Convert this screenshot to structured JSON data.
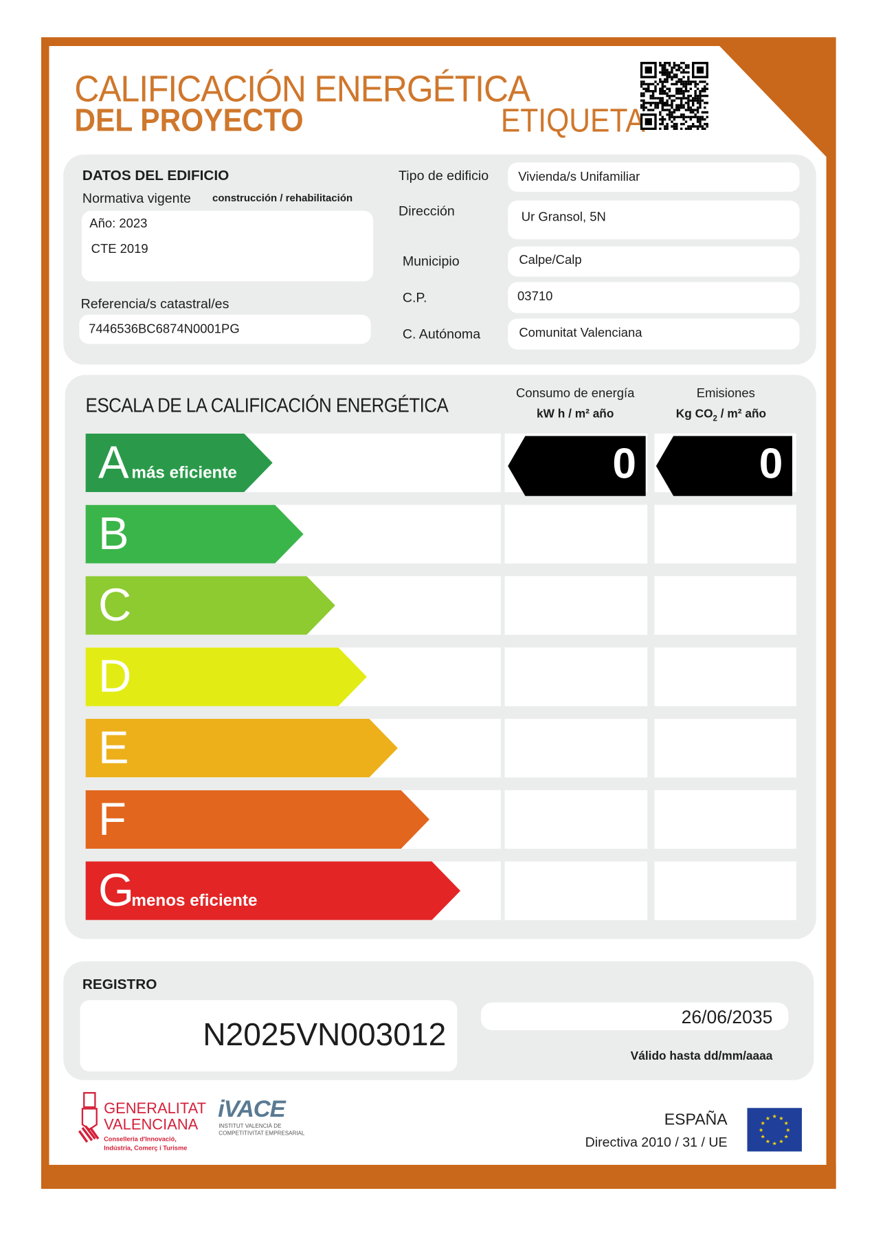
{
  "header": {
    "title_line1": "CALIFICACIÓN ENERGÉTICA",
    "title_line2": "DEL PROYECTO",
    "label": "ETIQUETA",
    "qr": "qr-code"
  },
  "building": {
    "section_title": "DATOS DEL EDIFICIO",
    "normativa_label": "Normativa vigente",
    "normativa_sub": "construcción / rehabilitación",
    "year": "Año: 2023",
    "norm": "CTE 2019",
    "cadastral_label": "Referencia/s catastral/es",
    "cadastral_value": "7446536BC6874N0001PG",
    "fields": [
      {
        "label": "Tipo de edificio",
        "value": "Vivienda/s Unifamiliar"
      },
      {
        "label": "Dirección",
        "value": "Ur Gransol, 5N"
      },
      {
        "label": "Municipio",
        "value": "Calpe/Calp"
      },
      {
        "label": "C.P.",
        "value": "03710"
      },
      {
        "label": "C. Autónoma",
        "value": "Comunitat Valenciana"
      }
    ]
  },
  "scale": {
    "title": "ESCALA DE LA CALIFICACIÓN ENERGÉTICA",
    "consumo_title": "Consumo de energía",
    "consumo_unit": "kW h / m² año",
    "emisiones_title": "Emisiones",
    "emisiones_unit_pre": "Kg CO",
    "emisiones_unit_sub": "2",
    "emisiones_unit_post": " / m² año",
    "classes": [
      {
        "letter": "A",
        "label": "más eficiente",
        "color": "#2a9a4a"
      },
      {
        "letter": "B",
        "label": "",
        "color": "#3ab54a"
      },
      {
        "letter": "C",
        "label": "",
        "color": "#8dcb31"
      },
      {
        "letter": "D",
        "label": "",
        "color": "#e2ec14"
      },
      {
        "letter": "E",
        "label": "",
        "color": "#edb01b"
      },
      {
        "letter": "F",
        "label": "",
        "color": "#e2661e"
      },
      {
        "letter": "G",
        "label": "menos eficiente",
        "color": "#e42526"
      }
    ],
    "rating_class": "A",
    "consumo_value": "0",
    "emisiones_value": "0"
  },
  "registro": {
    "title": "REGISTRO",
    "number": "N2025VN003012",
    "date": "26/06/2035",
    "valid_label": "Válido hasta dd/mm/aaaa"
  },
  "footer": {
    "gva_line1": "GENERALITAT",
    "gva_line2": "VALENCIANA",
    "gva_sub1": "Conselleria d'Innovació,",
    "gva_sub2": "Indústria, Comerç i Turisme",
    "ivace": "iVACE",
    "ivace_sub1": "INSTITUT VALENCIÀ DE",
    "ivace_sub2": "COMPETITIVITAT EMPRESARIAL",
    "country": "ESPAÑA",
    "directive": "Directiva 2010 / 31 / UE"
  },
  "colors": {
    "frame": "#c9671a",
    "title": "#cf772c",
    "panel": "#ebecec"
  }
}
